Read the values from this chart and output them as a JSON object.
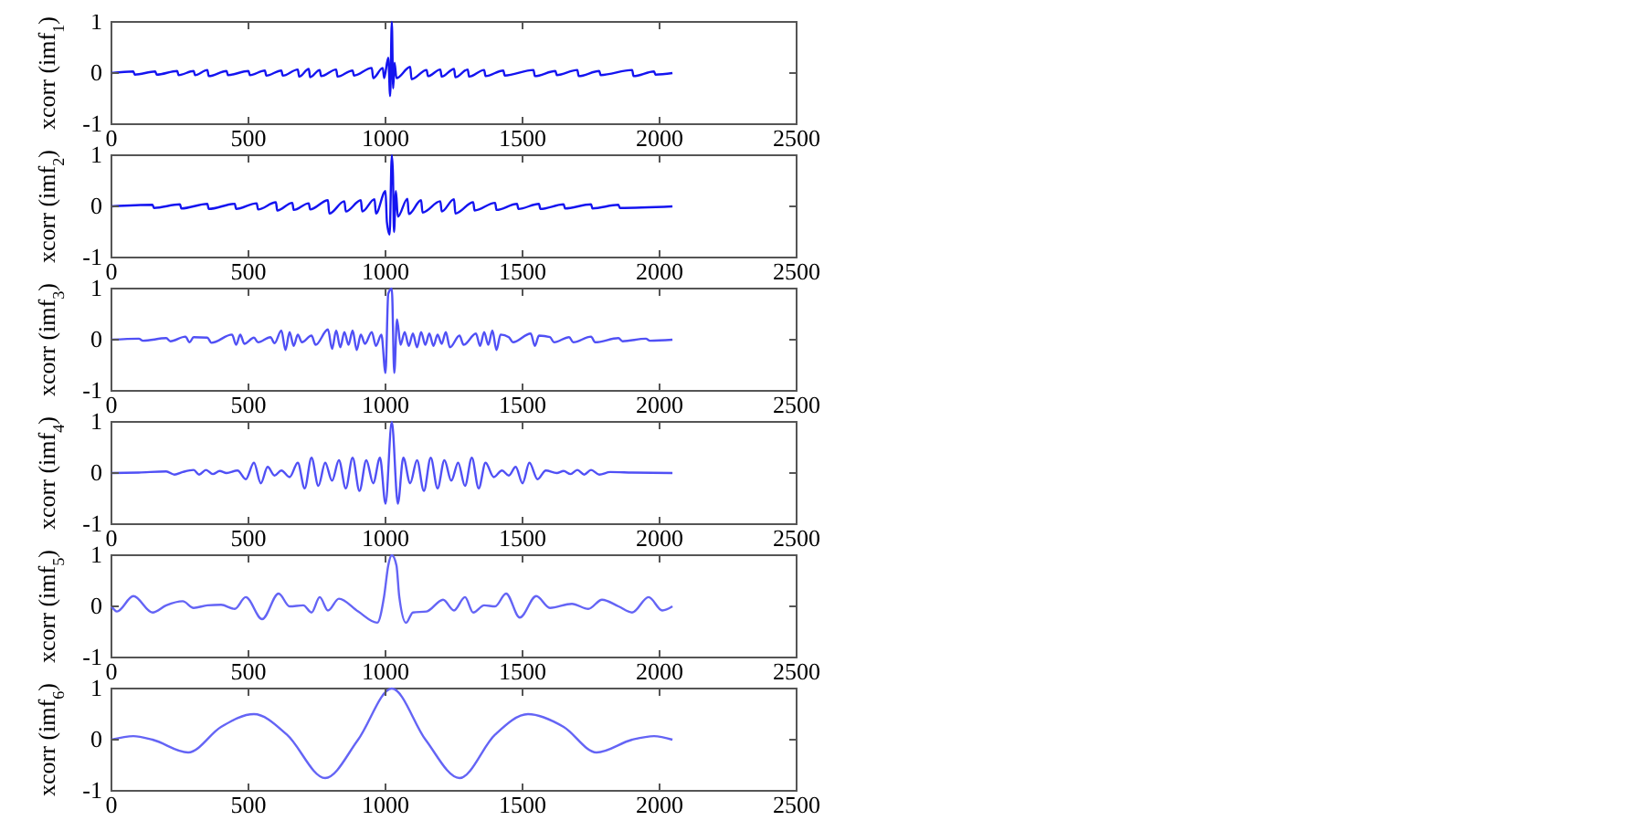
{
  "chart_data": [
    {
      "type": "line",
      "ylabel": "xcorr (imf$_{1}$)",
      "xlim": [
        0,
        2500
      ],
      "ylim": [
        -1,
        1
      ],
      "xticks": [
        0,
        500,
        1000,
        1500,
        2000,
        2500
      ],
      "yticks": [
        -1,
        0,
        1
      ],
      "series": [
        {
          "color": "#1414f0",
          "x": [
            0,
            80,
            85,
            160,
            165,
            240,
            245,
            300,
            305,
            350,
            355,
            420,
            425,
            500,
            505,
            560,
            565,
            620,
            625,
            680,
            685,
            720,
            725,
            760,
            765,
            820,
            825,
            880,
            885,
            950,
            955,
            990,
            995,
            1010,
            1017,
            1023,
            1028,
            1033,
            1040,
            1090,
            1095,
            1150,
            1155,
            1200,
            1205,
            1250,
            1255,
            1300,
            1305,
            1360,
            1365,
            1430,
            1435,
            1540,
            1545,
            1620,
            1625,
            1700,
            1705,
            1780,
            1785,
            1900,
            1905,
            1980,
            1985,
            2047
          ],
          "values": [
            0,
            0.03,
            -0.03,
            0.03,
            -0.03,
            0.04,
            -0.04,
            0.04,
            -0.04,
            0.06,
            -0.06,
            0.04,
            -0.04,
            0.04,
            -0.04,
            0.05,
            -0.05,
            0.05,
            -0.05,
            0.07,
            -0.07,
            0.08,
            -0.08,
            0.06,
            -0.06,
            0.07,
            -0.07,
            0.05,
            -0.05,
            0.1,
            -0.1,
            0.1,
            -0.1,
            0.3,
            -0.45,
            1,
            -0.3,
            0.2,
            -0.1,
            0.12,
            -0.12,
            0.06,
            -0.06,
            0.07,
            -0.07,
            0.08,
            -0.08,
            0.07,
            -0.07,
            0.06,
            -0.06,
            0.05,
            -0.05,
            0.06,
            -0.06,
            0.04,
            -0.04,
            0.06,
            -0.06,
            0.04,
            -0.04,
            0.06,
            -0.06,
            0.03,
            -0.03,
            0
          ]
        }
      ]
    },
    {
      "type": "line",
      "ylabel": "xcorr (imf$_{2}$)",
      "xlim": [
        0,
        2500
      ],
      "ylim": [
        -1,
        1
      ],
      "xticks": [
        0,
        500,
        1000,
        1500,
        2000,
        2500
      ],
      "yticks": [
        -1,
        0,
        1
      ],
      "series": [
        {
          "color": "#1414f0",
          "x": [
            0,
            150,
            155,
            250,
            255,
            350,
            355,
            450,
            455,
            530,
            535,
            600,
            605,
            660,
            665,
            720,
            725,
            790,
            795,
            850,
            855,
            910,
            915,
            960,
            965,
            1000,
            1005,
            1015,
            1023,
            1027,
            1031,
            1038,
            1045,
            1080,
            1085,
            1130,
            1135,
            1200,
            1205,
            1250,
            1255,
            1320,
            1325,
            1400,
            1405,
            1480,
            1485,
            1560,
            1565,
            1650,
            1655,
            1750,
            1755,
            1850,
            1855,
            2047
          ],
          "values": [
            0,
            0.03,
            -0.03,
            0.04,
            -0.04,
            0.05,
            -0.05,
            0.05,
            -0.05,
            0.06,
            -0.06,
            0.08,
            -0.08,
            0.07,
            -0.07,
            0.06,
            -0.06,
            0.12,
            -0.14,
            0.1,
            -0.1,
            0.12,
            -0.1,
            0.14,
            -0.14,
            0.3,
            -0.3,
            -0.55,
            1,
            0.65,
            -0.5,
            0.3,
            -0.2,
            0.15,
            -0.15,
            0.12,
            -0.12,
            0.1,
            -0.1,
            0.14,
            -0.14,
            0.08,
            -0.08,
            0.07,
            -0.07,
            0.05,
            -0.05,
            0.05,
            -0.05,
            0.04,
            -0.04,
            0.04,
            -0.04,
            0.03,
            -0.03,
            0
          ]
        }
      ]
    },
    {
      "type": "line",
      "ylabel": "xcorr (imf$_{3}$)",
      "xlim": [
        0,
        2500
      ],
      "ylim": [
        -1,
        1
      ],
      "xticks": [
        0,
        500,
        1000,
        1500,
        2000,
        2500
      ],
      "yticks": [
        -1,
        0,
        1
      ],
      "series": [
        {
          "color": "#5050f5",
          "x": [
            0,
            100,
            115,
            200,
            215,
            270,
            285,
            300,
            350,
            365,
            440,
            455,
            470,
            485,
            520,
            535,
            580,
            595,
            620,
            635,
            650,
            665,
            680,
            695,
            730,
            745,
            790,
            805,
            820,
            835,
            850,
            865,
            880,
            895,
            910,
            925,
            950,
            965,
            985,
            1000,
            1010,
            1023,
            1032,
            1042,
            1055,
            1070,
            1085,
            1100,
            1115,
            1130,
            1145,
            1160,
            1175,
            1190,
            1205,
            1220,
            1235,
            1270,
            1285,
            1330,
            1345,
            1360,
            1375,
            1390,
            1405,
            1420,
            1450,
            1465,
            1530,
            1545,
            1560,
            1600,
            1615,
            1670,
            1685,
            1750,
            1765,
            1850,
            1865,
            1950,
            1965,
            2047
          ],
          "values": [
            0,
            0.02,
            -0.02,
            0.03,
            -0.03,
            0.06,
            -0.05,
            0.05,
            0.04,
            -0.06,
            0.1,
            -0.1,
            0.1,
            -0.08,
            0.04,
            -0.05,
            0.05,
            -0.07,
            0.18,
            -0.2,
            0.15,
            -0.12,
            0.1,
            -0.05,
            0.08,
            -0.1,
            0.2,
            -0.18,
            0.18,
            -0.15,
            0.15,
            -0.1,
            0.18,
            -0.2,
            0.1,
            -0.08,
            0.15,
            -0.12,
            0.1,
            -0.65,
            0.9,
            1,
            -0.65,
            0.4,
            -0.1,
            0.15,
            -0.12,
            0.12,
            -0.15,
            0.15,
            -0.1,
            0.12,
            -0.12,
            0.1,
            -0.08,
            0.15,
            -0.15,
            0.08,
            -0.1,
            0.12,
            -0.12,
            0.15,
            -0.1,
            0.18,
            -0.2,
            0.1,
            0.05,
            -0.05,
            0.12,
            -0.12,
            0.08,
            0.05,
            -0.05,
            0.05,
            -0.05,
            0.06,
            -0.05,
            0.03,
            -0.03,
            0.02,
            -0.02,
            0
          ]
        }
      ]
    },
    {
      "type": "line",
      "ylabel": "xcorr (imf$_{4}$)",
      "xlim": [
        0,
        2500
      ],
      "ylim": [
        -1,
        1
      ],
      "xticks": [
        0,
        500,
        1000,
        1500,
        2000,
        2500
      ],
      "yticks": [
        -1,
        0,
        1
      ],
      "series": [
        {
          "color": "#5050f5",
          "x": [
            0,
            100,
            200,
            230,
            260,
            300,
            320,
            345,
            370,
            395,
            420,
            460,
            490,
            520,
            545,
            570,
            595,
            620,
            650,
            680,
            705,
            730,
            755,
            780,
            805,
            830,
            855,
            880,
            905,
            930,
            955,
            980,
            1000,
            1023,
            1045,
            1065,
            1090,
            1115,
            1140,
            1165,
            1190,
            1215,
            1240,
            1265,
            1290,
            1315,
            1340,
            1365,
            1395,
            1425,
            1450,
            1475,
            1500,
            1525,
            1555,
            1585,
            1625,
            1650,
            1675,
            1700,
            1725,
            1750,
            1780,
            1820,
            1900,
            2047
          ],
          "values": [
            0,
            0.01,
            0.03,
            -0.03,
            0.02,
            0.06,
            -0.03,
            0.06,
            -0.02,
            0.04,
            0,
            0.05,
            -0.12,
            0.2,
            -0.2,
            0.12,
            -0.05,
            0.05,
            -0.08,
            0.2,
            -0.3,
            0.3,
            -0.25,
            0.2,
            -0.15,
            0.25,
            -0.3,
            0.3,
            -0.35,
            0.25,
            -0.2,
            0.3,
            -0.6,
            1,
            -0.6,
            0.3,
            -0.2,
            0.25,
            -0.35,
            0.3,
            -0.3,
            0.25,
            -0.15,
            0.2,
            -0.25,
            0.3,
            -0.3,
            0.2,
            -0.08,
            0.05,
            -0.05,
            0.12,
            -0.2,
            0.2,
            -0.12,
            0.05,
            0,
            0.04,
            -0.02,
            0.06,
            -0.03,
            0.06,
            -0.03,
            0.02,
            0.01,
            0
          ]
        }
      ]
    },
    {
      "type": "line",
      "ylabel": "xcorr (imf$_{5}$)",
      "xlim": [
        0,
        2500
      ],
      "ylim": [
        -1,
        1
      ],
      "xticks": [
        0,
        500,
        1000,
        1500,
        2000,
        2500
      ],
      "yticks": [
        -1,
        0,
        1
      ],
      "series": [
        {
          "color": "#6464f5",
          "x": [
            0,
            20,
            80,
            150,
            200,
            260,
            300,
            350,
            400,
            450,
            490,
            550,
            610,
            650,
            700,
            730,
            760,
            790,
            830,
            900,
            970,
            995,
            1010,
            1023,
            1040,
            1050,
            1075,
            1100,
            1150,
            1210,
            1250,
            1290,
            1320,
            1360,
            1400,
            1440,
            1490,
            1550,
            1600,
            1680,
            1740,
            1790,
            1850,
            1900,
            1960,
            2010,
            2047
          ],
          "values": [
            0,
            -0.1,
            0.2,
            -0.12,
            0.02,
            0.1,
            -0.03,
            0.02,
            0.03,
            -0.05,
            0.18,
            -0.25,
            0.25,
            0,
            0.02,
            -0.12,
            0.18,
            -0.08,
            0.15,
            -0.1,
            -0.32,
            0.2,
            0.8,
            1,
            0.8,
            0.2,
            -0.32,
            -0.12,
            -0.1,
            0.13,
            -0.08,
            0.18,
            -0.12,
            0.02,
            0,
            0.25,
            -0.22,
            0.2,
            -0.03,
            0.05,
            -0.05,
            0.13,
            0,
            -0.12,
            0.18,
            -0.08,
            0
          ]
        }
      ]
    },
    {
      "type": "line",
      "ylabel": "xcorr (imf$_{6}$)",
      "xlim": [
        0,
        2500
      ],
      "ylim": [
        -1,
        1
      ],
      "xticks": [
        0,
        500,
        1000,
        1500,
        2000,
        2500
      ],
      "yticks": [
        -1,
        0,
        1
      ],
      "series": [
        {
          "color": "#6464f5",
          "x": [
            0,
            80,
            150,
            280,
            400,
            520,
            640,
            780,
            900,
            1023,
            1146,
            1270,
            1400,
            1520,
            1650,
            1770,
            1900,
            1980,
            2047
          ],
          "values": [
            0,
            0.07,
            0,
            -0.25,
            0.25,
            0.5,
            0.1,
            -0.75,
            0,
            1,
            0,
            -0.75,
            0.1,
            0.5,
            0.25,
            -0.25,
            0,
            0.07,
            0
          ]
        }
      ]
    }
  ]
}
